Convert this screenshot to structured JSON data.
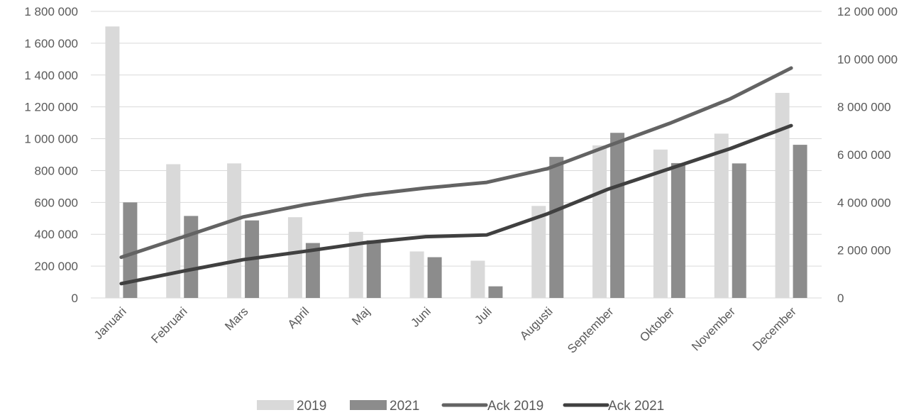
{
  "chart_data": {
    "type": "bar",
    "categories": [
      "Januari",
      "Februari",
      "Mars",
      "April",
      "Maj",
      "Juni",
      "Juli",
      "Augusti",
      "September",
      "Oktober",
      "November",
      "December"
    ],
    "bar_series": [
      {
        "name": "2019",
        "color": "#d9d9d9",
        "values": [
          1705000,
          840000,
          845000,
          507000,
          415000,
          292000,
          234000,
          578000,
          958000,
          932000,
          1032000,
          1288000
        ]
      },
      {
        "name": "2021",
        "color": "#8c8c8c",
        "values": [
          600000,
          515000,
          487000,
          345000,
          362000,
          256000,
          73000,
          886000,
          1037000,
          847000,
          845000,
          962000
        ]
      }
    ],
    "line_series": [
      {
        "name": "Ack 2019",
        "color": "#636363",
        "values": [
          1705000,
          2545000,
          3390000,
          3897000,
          4312000,
          4604000,
          4838000,
          5416000,
          6374000,
          7306000,
          8338000,
          9626000
        ]
      },
      {
        "name": "Ack 2021",
        "color": "#404040",
        "values": [
          600000,
          1115000,
          1602000,
          1947000,
          2309000,
          2565000,
          2638000,
          3524000,
          4561000,
          5408000,
          6253000,
          7215000
        ]
      }
    ],
    "left_axis": {
      "ylim": [
        0,
        1800000
      ],
      "ticks": [
        "0",
        "200 000",
        "400 000",
        "600 000",
        "800 000",
        "1 000 000",
        "1 200 000",
        "1 400 000",
        "1 600 000",
        "1 800 000"
      ]
    },
    "right_axis": {
      "ylim": [
        0,
        12000000
      ],
      "ticks": [
        "0",
        "2 000 000",
        "4 000 000",
        "6 000 000",
        "8 000 000",
        "10 000 000",
        "12 000 000"
      ]
    },
    "grid": true,
    "legend_position": "bottom",
    "gridline_color": "#d9d9d9"
  }
}
